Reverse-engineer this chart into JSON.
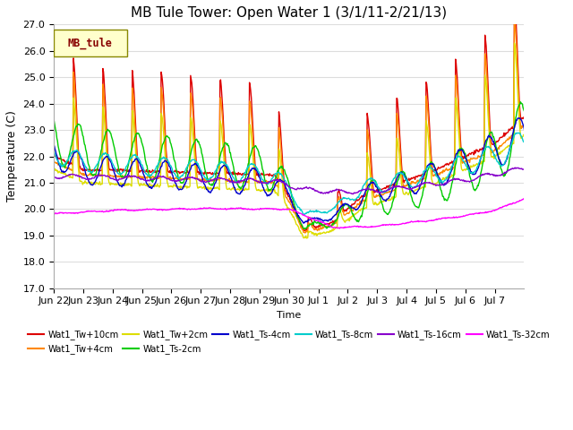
{
  "title": "MB Tule Tower: Open Water 1 (3/1/11-2/21/13)",
  "ylabel": "Temperature (C)",
  "xlabel": "Time",
  "ylim": [
    17.0,
    27.0
  ],
  "yticks": [
    17.0,
    18.0,
    19.0,
    20.0,
    21.0,
    22.0,
    23.0,
    24.0,
    25.0,
    26.0,
    27.0
  ],
  "series": [
    {
      "label": "Wat1_Tw+10cm",
      "color": "#dd0000"
    },
    {
      "label": "Wat1_Tw+4cm",
      "color": "#ff8800"
    },
    {
      "label": "Wat1_Tw+2cm",
      "color": "#dddd00"
    },
    {
      "label": "Wat1_Ts-2cm",
      "color": "#00cc00"
    },
    {
      "label": "Wat1_Ts-4cm",
      "color": "#0000cc"
    },
    {
      "label": "Wat1_Ts-8cm",
      "color": "#00cccc"
    },
    {
      "label": "Wat1_Ts-16cm",
      "color": "#8800cc"
    },
    {
      "label": "Wat1_Ts-32cm",
      "color": "#ff00ff"
    }
  ],
  "legend_box_facecolor": "#ffffcc",
  "legend_box_edgecolor": "#888800",
  "legend_text": "MB_tule",
  "legend_text_color": "#880000",
  "plot_bg_color": "#ffffff",
  "fig_bg_color": "#ffffff",
  "grid_color": "#dddddd",
  "title_fontsize": 11,
  "tick_fontsize": 8,
  "ylabel_fontsize": 9,
  "xlabel_fontsize": 8
}
